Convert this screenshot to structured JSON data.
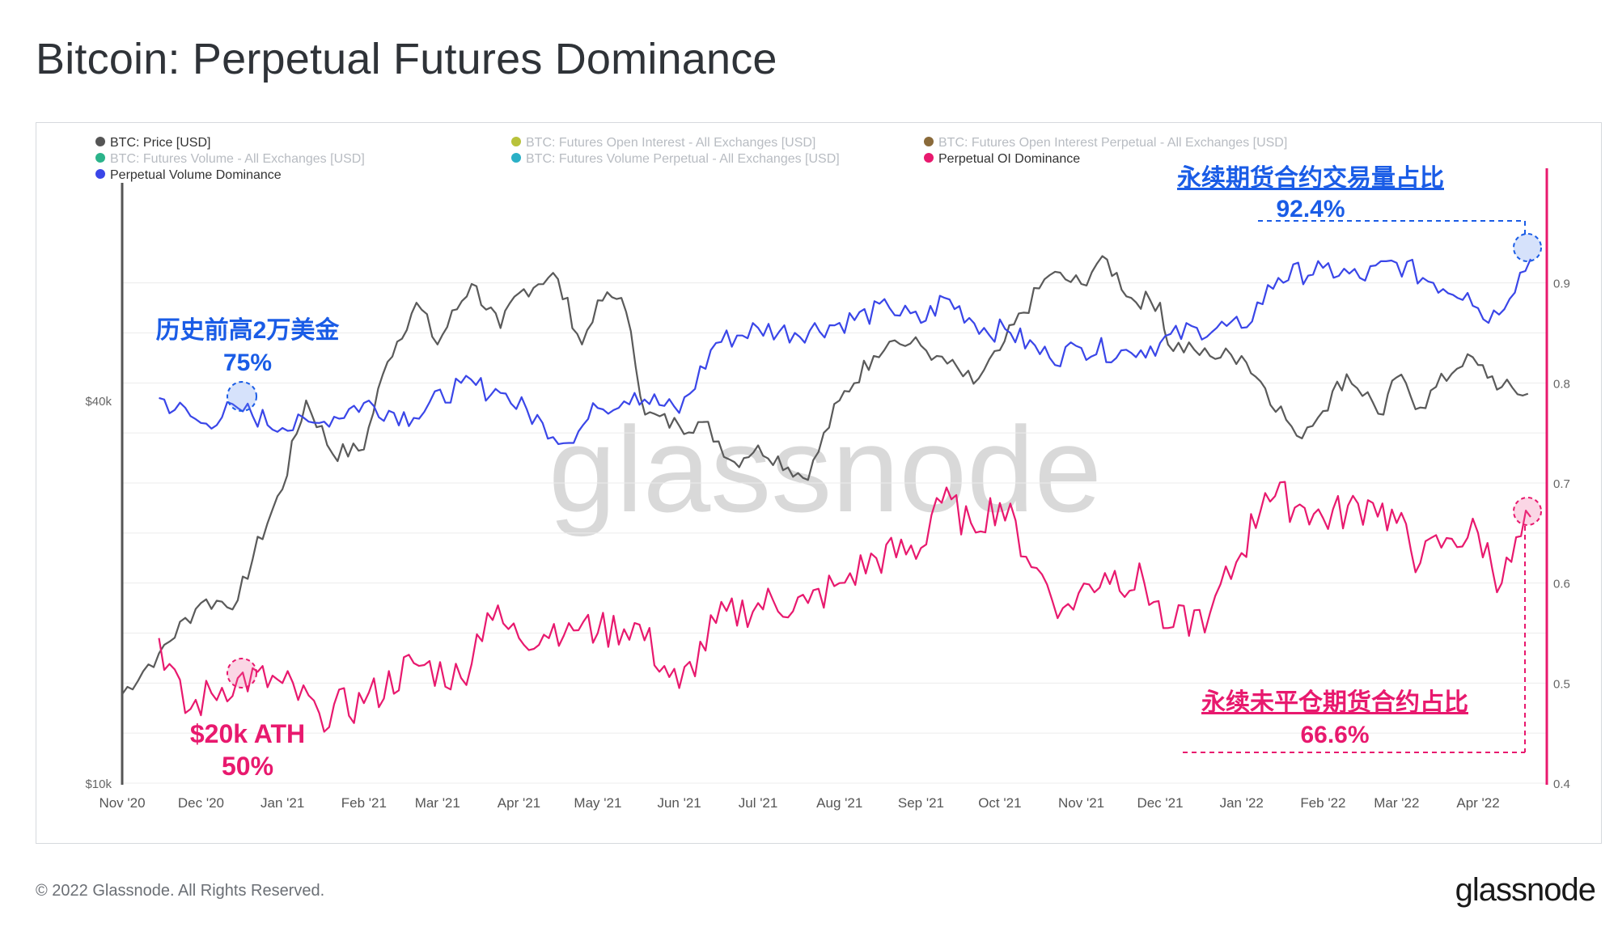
{
  "page": {
    "title": "Bitcoin: Perpetual Futures Dominance",
    "copyright": "© 2022 Glassnode. All Rights Reserved.",
    "logo": "glassnode",
    "watermark": "glassnode"
  },
  "legend": [
    {
      "label": "BTC: Price [USD]",
      "color": "#555555",
      "active": true
    },
    {
      "label": "BTC: Futures Open Interest - All Exchanges [USD]",
      "color": "#b8c23a",
      "active": false
    },
    {
      "label": "BTC: Futures Open Interest Perpetual - All Exchanges [USD]",
      "color": "#8a6a3a",
      "active": false
    },
    {
      "label": "BTC: Futures Volume - All Exchanges [USD]",
      "color": "#2bb38a",
      "active": false
    },
    {
      "label": "BTC: Futures Volume Perpetual - All Exchanges [USD]",
      "color": "#2ab0c6",
      "active": false
    },
    {
      "label": "Perpetual OI Dominance",
      "color": "#e8196e",
      "active": true
    },
    {
      "label": "Perpetual Volume Dominance",
      "color": "#3a46e8",
      "active": true
    }
  ],
  "annotations": {
    "vol_title": "永续期货合约交易量占比",
    "vol_value": "92.4%",
    "ath_vol_title": "历史前高2万美金",
    "ath_vol_value": "75%",
    "ath_oi_title": "$20k ATH",
    "ath_oi_value": "50%",
    "oi_title": "永续未平仓期货合约占比",
    "oi_value": "66.6%"
  },
  "colors": {
    "price": "#5a5a5a",
    "volume_dominance": "#3a46e8",
    "oi_dominance": "#e8196e",
    "annotation_blue": "#1a5ce6",
    "annotation_pink": "#e8196e",
    "grid": "#ececec"
  },
  "chart_data": {
    "type": "line",
    "title": "Bitcoin: Perpetual Futures Dominance",
    "x_ticks": [
      "Nov '20",
      "Dec '20",
      "Jan '21",
      "Feb '21",
      "Mar '21",
      "Apr '21",
      "May '21",
      "Jun '21",
      "Jul '21",
      "Aug '21",
      "Sep '21",
      "Oct '21",
      "Nov '21",
      "Dec '21",
      "Jan '22",
      "Feb '22",
      "Mar '22",
      "Apr '22"
    ],
    "left_axis": {
      "scale": "log",
      "ticks": [
        "$10k",
        "$40k"
      ],
      "range": [
        10000,
        88000
      ]
    },
    "right_axis": {
      "scale": "linear",
      "ticks": [
        "0.4",
        "0.5",
        "0.6",
        "0.7",
        "0.8",
        "0.9"
      ],
      "range": [
        0.4,
        1.0
      ]
    },
    "series": [
      {
        "name": "BTC: Price [USD]",
        "axis": "left",
        "color": "#5a5a5a",
        "x": [
          "2020-11-01",
          "2020-11-15",
          "2020-12-01",
          "2020-12-15",
          "2021-01-01",
          "2021-01-10",
          "2021-01-20",
          "2021-02-01",
          "2021-02-10",
          "2021-02-21",
          "2021-03-01",
          "2021-03-14",
          "2021-03-25",
          "2021-04-01",
          "2021-04-14",
          "2021-04-25",
          "2021-05-01",
          "2021-05-10",
          "2021-05-19",
          "2021-06-01",
          "2021-06-10",
          "2021-06-22",
          "2021-07-01",
          "2021-07-20",
          "2021-08-01",
          "2021-08-14",
          "2021-08-20",
          "2021-09-01",
          "2021-09-07",
          "2021-09-21",
          "2021-10-01",
          "2021-10-10",
          "2021-10-20",
          "2021-11-01",
          "2021-11-09",
          "2021-11-20",
          "2021-12-01",
          "2021-12-04",
          "2021-12-20",
          "2022-01-01",
          "2022-01-10",
          "2022-01-22",
          "2022-02-01",
          "2022-02-10",
          "2022-02-24",
          "2022-03-01",
          "2022-03-10",
          "2022-03-28",
          "2022-04-01",
          "2022-04-10",
          "2022-04-20"
        ],
        "values": [
          13800,
          16000,
          19200,
          19400,
          29000,
          40000,
          33000,
          33500,
          46000,
          57000,
          49000,
          61000,
          52000,
          59000,
          63500,
          49000,
          57500,
          58000,
          38000,
          36500,
          37000,
          32000,
          34000,
          30000,
          40000,
          47000,
          49500,
          48800,
          47000,
          42500,
          48000,
          55000,
          63000,
          61000,
          67500,
          58000,
          57000,
          49000,
          47000,
          47000,
          41800,
          35200,
          38500,
          44000,
          38000,
          43500,
          39000,
          47300,
          45500,
          42000,
          41000
        ]
      },
      {
        "name": "Perpetual Volume Dominance",
        "axis": "right",
        "color": "#3a46e8",
        "x": [
          "2020-11-15",
          "2020-12-01",
          "2020-12-15",
          "2021-01-01",
          "2021-01-15",
          "2021-02-01",
          "2021-02-20",
          "2021-03-10",
          "2021-03-25",
          "2021-04-10",
          "2021-04-20",
          "2021-05-01",
          "2021-05-15",
          "2021-06-01",
          "2021-06-15",
          "2021-07-01",
          "2021-07-15",
          "2021-08-01",
          "2021-08-20",
          "2021-09-01",
          "2021-09-10",
          "2021-09-25",
          "2021-10-05",
          "2021-10-20",
          "2021-11-01",
          "2021-11-20",
          "2021-12-01",
          "2021-12-15",
          "2022-01-01",
          "2022-01-15",
          "2022-02-01",
          "2022-02-15",
          "2022-03-01",
          "2022-03-15",
          "2022-03-28",
          "2022-04-05",
          "2022-04-21"
        ],
        "values": [
          0.785,
          0.76,
          0.775,
          0.755,
          0.76,
          0.78,
          0.765,
          0.8,
          0.79,
          0.76,
          0.74,
          0.775,
          0.79,
          0.77,
          0.84,
          0.855,
          0.85,
          0.86,
          0.875,
          0.86,
          0.885,
          0.855,
          0.85,
          0.825,
          0.835,
          0.83,
          0.84,
          0.855,
          0.855,
          0.905,
          0.915,
          0.905,
          0.92,
          0.9,
          0.89,
          0.86,
          0.924
        ]
      },
      {
        "name": "Perpetual OI Dominance",
        "axis": "right",
        "color": "#e8196e",
        "x": [
          "2020-11-15",
          "2020-11-25",
          "2020-12-05",
          "2020-12-15",
          "2021-01-01",
          "2021-01-15",
          "2021-02-01",
          "2021-02-20",
          "2021-03-10",
          "2021-03-20",
          "2021-04-01",
          "2021-04-20",
          "2021-05-01",
          "2021-05-15",
          "2021-06-01",
          "2021-06-15",
          "2021-07-01",
          "2021-07-20",
          "2021-08-01",
          "2021-08-15",
          "2021-09-01",
          "2021-09-07",
          "2021-09-20",
          "2021-10-01",
          "2021-10-15",
          "2021-10-25",
          "2021-11-10",
          "2021-11-25",
          "2021-12-04",
          "2021-12-20",
          "2022-01-01",
          "2022-01-10",
          "2022-01-25",
          "2022-02-01",
          "2022-02-20",
          "2022-03-01",
          "2022-03-10",
          "2022-03-20",
          "2022-04-01",
          "2022-04-10",
          "2022-04-21"
        ],
        "values": [
          0.545,
          0.47,
          0.49,
          0.505,
          0.5,
          0.47,
          0.48,
          0.52,
          0.505,
          0.57,
          0.545,
          0.56,
          0.55,
          0.56,
          0.495,
          0.56,
          0.58,
          0.58,
          0.6,
          0.625,
          0.635,
          0.685,
          0.66,
          0.68,
          0.615,
          0.575,
          0.61,
          0.6,
          0.555,
          0.57,
          0.63,
          0.69,
          0.675,
          0.665,
          0.68,
          0.66,
          0.62,
          0.645,
          0.65,
          0.6,
          0.666
        ]
      }
    ]
  }
}
